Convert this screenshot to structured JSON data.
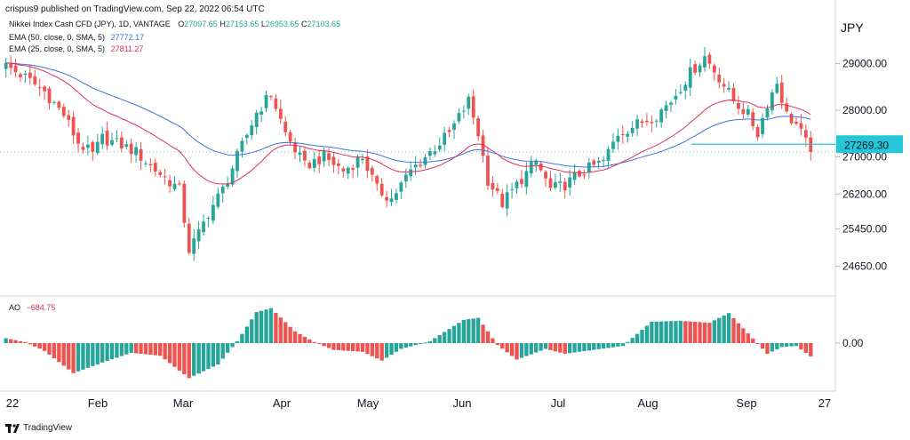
{
  "header": {
    "publisher": "crispus9 published on TradingView.com, Sep 22, 2022 06:54 UTC",
    "symbol": "Nikkei Index Cash CFD (JPY), 1D, VANTAGE",
    "ohlc": {
      "o_label": "O",
      "o": "27097.65",
      "h_label": "H",
      "h": "27153.65",
      "l_label": "L",
      "l": "26953.65",
      "c_label": "C",
      "c": "27103.65"
    },
    "currency": "JPY"
  },
  "legend": {
    "ema50": {
      "label": "EMA (50, close, 0, SMA, 5)",
      "value": "27772.17",
      "color": "#3f74e0"
    },
    "ema25": {
      "label": "EMA (25, close, 0, SMA, 5)",
      "value": "27811.27",
      "color": "#e0305a"
    },
    "ao": {
      "label": "AO",
      "value": "−684.75",
      "color": "#e0305a"
    }
  },
  "footer": {
    "brand": "TradingView"
  },
  "colors": {
    "up": "#26a69a",
    "down": "#ef5350",
    "ao_up": "#26a69a",
    "ao_down": "#ef5350",
    "price_label": "#26c6da"
  },
  "chart_data": [
    {
      "type": "candlestick",
      "title": "Nikkei Index Cash CFD (JPY), 1D, VANTAGE",
      "y_ticks": [
        29000.0,
        28000.0,
        27000.0,
        26200.0,
        25450.0,
        24650.0
      ],
      "y_tick_labels": [
        "29000.00",
        "28000.00",
        "27000.00",
        "26200.00",
        "25450.00",
        "24650.00"
      ],
      "ylim": [
        24300,
        29600
      ],
      "x_tick_labels": [
        "22",
        "Feb",
        "Mar",
        "Apr",
        "May",
        "Jun",
        "Jul",
        "Aug",
        "Sep",
        "27"
      ],
      "current_price": 27269.3,
      "current_price_label": "27269.30",
      "last_close": 27103.65,
      "ema50_last": 27772.17,
      "ema25_last": 27811.27,
      "anchors": [
        {
          "x": 0,
          "y": 28950
        },
        {
          "x": 4,
          "y": 28700
        },
        {
          "x": 8,
          "y": 28400
        },
        {
          "x": 12,
          "y": 27900
        },
        {
          "x": 15,
          "y": 27300
        },
        {
          "x": 18,
          "y": 27050
        },
        {
          "x": 20,
          "y": 27400
        },
        {
          "x": 24,
          "y": 27250
        },
        {
          "x": 27,
          "y": 27100
        },
        {
          "x": 30,
          "y": 26800
        },
        {
          "x": 33,
          "y": 26550
        },
        {
          "x": 36,
          "y": 26300
        },
        {
          "x": 38,
          "y": 25000
        },
        {
          "x": 40,
          "y": 25350
        },
        {
          "x": 42,
          "y": 25800
        },
        {
          "x": 45,
          "y": 26300
        },
        {
          "x": 48,
          "y": 27000
        },
        {
          "x": 52,
          "y": 27950
        },
        {
          "x": 55,
          "y": 28350
        },
        {
          "x": 58,
          "y": 27500
        },
        {
          "x": 62,
          "y": 26800
        },
        {
          "x": 66,
          "y": 27000
        },
        {
          "x": 70,
          "y": 26700
        },
        {
          "x": 74,
          "y": 27000
        },
        {
          "x": 77,
          "y": 26300
        },
        {
          "x": 80,
          "y": 26100
        },
        {
          "x": 84,
          "y": 26700
        },
        {
          "x": 88,
          "y": 27100
        },
        {
          "x": 92,
          "y": 27500
        },
        {
          "x": 96,
          "y": 28200
        },
        {
          "x": 98,
          "y": 27500
        },
        {
          "x": 100,
          "y": 26500
        },
        {
          "x": 103,
          "y": 26000
        },
        {
          "x": 106,
          "y": 26400
        },
        {
          "x": 110,
          "y": 26900
        },
        {
          "x": 113,
          "y": 26300
        },
        {
          "x": 116,
          "y": 26400
        },
        {
          "x": 120,
          "y": 26700
        },
        {
          "x": 124,
          "y": 26900
        },
        {
          "x": 127,
          "y": 27500
        },
        {
          "x": 131,
          "y": 27700
        },
        {
          "x": 135,
          "y": 27900
        },
        {
          "x": 138,
          "y": 28200
        },
        {
          "x": 142,
          "y": 28800
        },
        {
          "x": 145,
          "y": 29150
        },
        {
          "x": 148,
          "y": 28700
        },
        {
          "x": 151,
          "y": 28200
        },
        {
          "x": 154,
          "y": 27900
        },
        {
          "x": 156,
          "y": 27500
        },
        {
          "x": 158,
          "y": 28150
        },
        {
          "x": 160,
          "y": 28600
        },
        {
          "x": 162,
          "y": 27900
        },
        {
          "x": 164,
          "y": 27700
        },
        {
          "x": 167,
          "y": 27100
        }
      ],
      "n_candles": 168
    },
    {
      "type": "bar",
      "title": "AO",
      "value_last": -684.75,
      "y_ticks": [
        0.0
      ],
      "y_tick_labels": [
        "0.00"
      ],
      "ylim": [
        -2200,
        2200
      ],
      "anchors": [
        {
          "x": 0,
          "y": 250
        },
        {
          "x": 4,
          "y": 50
        },
        {
          "x": 8,
          "y": -400
        },
        {
          "x": 14,
          "y": -1550
        },
        {
          "x": 20,
          "y": -1000
        },
        {
          "x": 26,
          "y": -500
        },
        {
          "x": 32,
          "y": -650
        },
        {
          "x": 38,
          "y": -1800
        },
        {
          "x": 44,
          "y": -1100
        },
        {
          "x": 48,
          "y": 100
        },
        {
          "x": 52,
          "y": 1600
        },
        {
          "x": 55,
          "y": 1800
        },
        {
          "x": 60,
          "y": 600
        },
        {
          "x": 64,
          "y": 50
        },
        {
          "x": 68,
          "y": -350
        },
        {
          "x": 74,
          "y": -450
        },
        {
          "x": 78,
          "y": -900
        },
        {
          "x": 82,
          "y": -300
        },
        {
          "x": 88,
          "y": 100
        },
        {
          "x": 95,
          "y": 1200
        },
        {
          "x": 98,
          "y": 1300
        },
        {
          "x": 102,
          "y": -100
        },
        {
          "x": 106,
          "y": -850
        },
        {
          "x": 112,
          "y": -300
        },
        {
          "x": 116,
          "y": -550
        },
        {
          "x": 122,
          "y": -350
        },
        {
          "x": 128,
          "y": -150
        },
        {
          "x": 134,
          "y": 1100
        },
        {
          "x": 140,
          "y": 1150
        },
        {
          "x": 146,
          "y": 1050
        },
        {
          "x": 150,
          "y": 1550
        },
        {
          "x": 154,
          "y": 500
        },
        {
          "x": 158,
          "y": -550
        },
        {
          "x": 161,
          "y": -200
        },
        {
          "x": 164,
          "y": -150
        },
        {
          "x": 167,
          "y": -685
        }
      ]
    }
  ]
}
